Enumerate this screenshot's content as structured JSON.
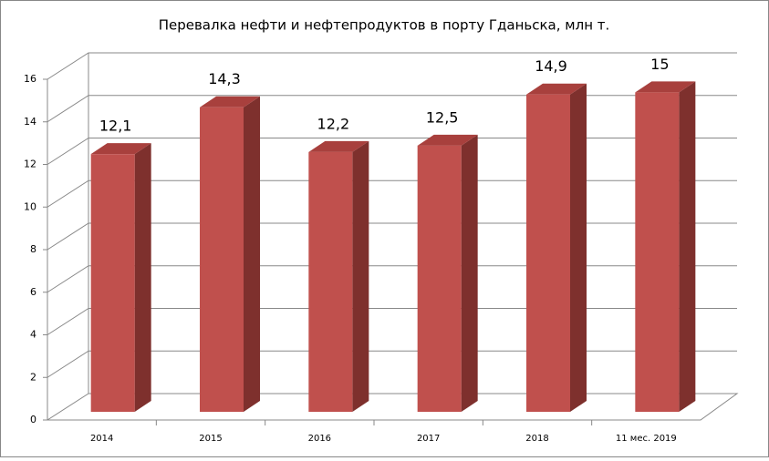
{
  "chart_data": {
    "type": "bar3d",
    "title": "Перевалка нефти и нефтепродуктов в порту Гданьска, млн т.",
    "categories": [
      "2014",
      "2015",
      "2016",
      "2017",
      "2018",
      "11 мес. 2019"
    ],
    "values": [
      12.1,
      14.3,
      12.2,
      12.5,
      14.9,
      15
    ],
    "value_labels": [
      "12,1",
      "14,3",
      "12,2",
      "12,5",
      "14,9",
      "15"
    ],
    "color": "#c0504d",
    "ylim": [
      0,
      16
    ],
    "yticks": [
      0,
      2,
      4,
      6,
      8,
      10,
      12,
      14,
      16
    ],
    "grid": true
  }
}
